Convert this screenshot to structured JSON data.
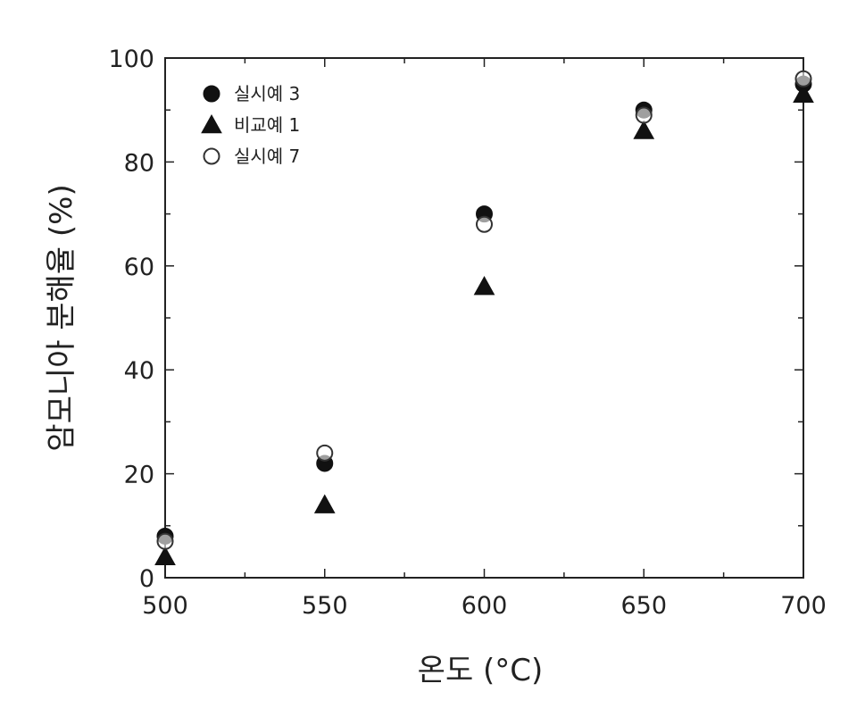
{
  "chart_data": {
    "type": "scatter",
    "xlabel": "온도 (°C)",
    "ylabel": "암모니아 분해율 (%)",
    "xlim": [
      500,
      700
    ],
    "ylim": [
      0,
      100
    ],
    "xticks": [
      500,
      550,
      600,
      650,
      700
    ],
    "yticks": [
      0,
      20,
      40,
      60,
      80,
      100
    ],
    "grid": false,
    "legend_position": "top-left",
    "series": [
      {
        "name": "실시예 3",
        "marker": "filled-circle",
        "x": [
          500,
          550,
          600,
          650,
          700
        ],
        "y": [
          8,
          22,
          70,
          90,
          95
        ]
      },
      {
        "name": "비교예 1",
        "marker": "filled-triangle",
        "x": [
          500,
          550,
          600,
          650,
          700
        ],
        "y": [
          4,
          14,
          56,
          86,
          93
        ]
      },
      {
        "name": "실시예 7",
        "marker": "open-circle",
        "x": [
          500,
          550,
          600,
          650,
          700
        ],
        "y": [
          7,
          24,
          68,
          89,
          96
        ]
      }
    ]
  }
}
